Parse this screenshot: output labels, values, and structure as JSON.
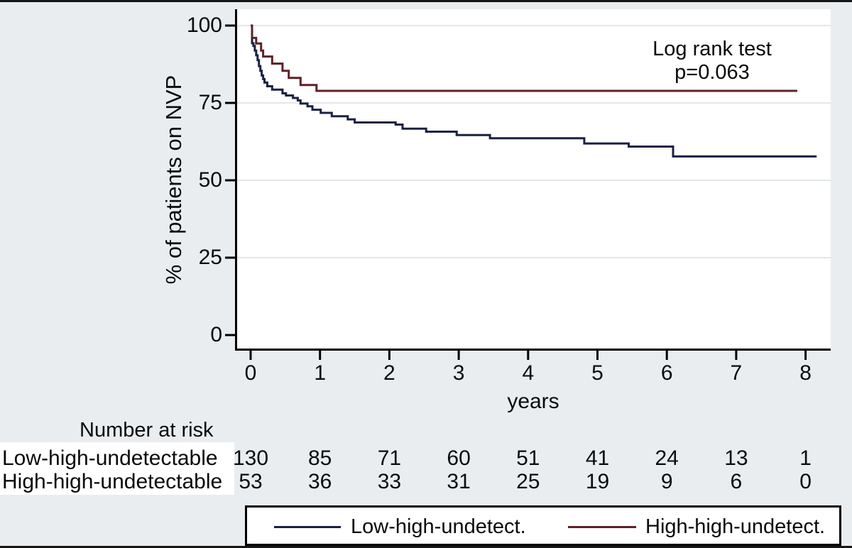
{
  "colors": {
    "outer_background": "#e9edf0",
    "plot_background": "#ffffff",
    "grid": "#e3e8e9",
    "axis": "#000000",
    "series_low": "#1a2142",
    "series_high": "#5e2126",
    "risk_label_chip": "#ffffff"
  },
  "axes": {
    "y_title": "% of patients on NVP",
    "x_title": "years"
  },
  "annotation": {
    "line1": "Log rank test",
    "line2": "p=0.063"
  },
  "chart_data": {
    "type": "line",
    "variant": "kaplan_meier_step",
    "title": "",
    "xlabel": "years",
    "ylabel": "% of patients on NVP",
    "xlim": [
      0,
      8.36
    ],
    "ylim": [
      0,
      105
    ],
    "x_ticks": [
      0,
      1,
      2,
      3,
      4,
      5,
      6,
      7,
      8
    ],
    "y_ticks": [
      0,
      25,
      50,
      75,
      100
    ],
    "grid": "horizontal-light",
    "legend_position": "bottom",
    "annotation": [
      "Log rank test",
      "p=0.063"
    ],
    "series": [
      {
        "name": "Low-high-undetect.",
        "color": "#1a2142",
        "end_time": 8.16,
        "steps": [
          [
            0,
            100
          ],
          [
            0.02,
            94.3
          ],
          [
            0.04,
            93.4
          ],
          [
            0.06,
            91.9
          ],
          [
            0.08,
            90.4
          ],
          [
            0.1,
            88.8
          ],
          [
            0.12,
            86.9
          ],
          [
            0.14,
            85.4
          ],
          [
            0.16,
            83.9
          ],
          [
            0.18,
            82.7
          ],
          [
            0.2,
            81.6
          ],
          [
            0.24,
            80.4
          ],
          [
            0.31,
            79.3
          ],
          [
            0.46,
            78.1
          ],
          [
            0.51,
            77.4
          ],
          [
            0.61,
            76.6
          ],
          [
            0.68,
            75.8
          ],
          [
            0.72,
            74.8
          ],
          [
            0.82,
            73.9
          ],
          [
            0.89,
            72.8
          ],
          [
            1.01,
            71.8
          ],
          [
            1.17,
            70.7
          ],
          [
            1.4,
            69.7
          ],
          [
            1.5,
            68.7
          ],
          [
            2.09,
            68.0
          ],
          [
            2.19,
            66.7
          ],
          [
            2.53,
            65.7
          ],
          [
            2.97,
            64.6
          ],
          [
            3.45,
            63.6
          ],
          [
            4.81,
            61.9
          ],
          [
            5.45,
            60.9
          ],
          [
            6.09,
            57.7
          ],
          [
            8.16,
            57.7
          ]
        ]
      },
      {
        "name": "High-high-undetect.",
        "color": "#5e2126",
        "end_time": 7.88,
        "steps": [
          [
            0,
            100
          ],
          [
            0.02,
            96.0
          ],
          [
            0.08,
            94.2
          ],
          [
            0.15,
            91.9
          ],
          [
            0.18,
            90.0
          ],
          [
            0.31,
            87.7
          ],
          [
            0.46,
            85.4
          ],
          [
            0.55,
            83.1
          ],
          [
            0.72,
            80.8
          ],
          [
            0.95,
            78.9
          ],
          [
            7.88,
            78.9
          ]
        ]
      }
    ]
  },
  "risk_table": {
    "heading": "Number at risk",
    "time_points": [
      0,
      1,
      2,
      3,
      4,
      5,
      6,
      7,
      8
    ],
    "rows": [
      {
        "label": "Low-high-undetectable",
        "counts": [
          130,
          85,
          71,
          60,
          51,
          41,
          24,
          13,
          1
        ]
      },
      {
        "label": "High-high-undetectable",
        "counts": [
          53,
          36,
          33,
          31,
          25,
          19,
          9,
          6,
          0
        ]
      }
    ]
  },
  "legend": {
    "entries": [
      {
        "label": "Low-high-undetect.",
        "color": "#1a2142"
      },
      {
        "label": "High-high-undetect.",
        "color": "#5e2126"
      }
    ]
  }
}
